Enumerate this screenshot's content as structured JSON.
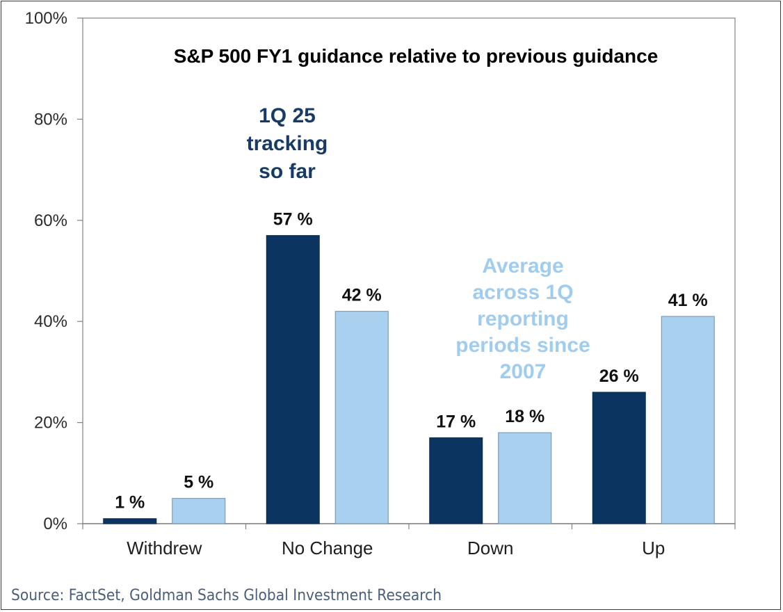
{
  "colors": {
    "series_dark": "#0b3460",
    "series_light": "#a9d0ef",
    "annotation_dark": "#173b66",
    "annotation_light": "#9fccef",
    "axis": "#808080"
  },
  "chart_data": {
    "type": "bar",
    "title": "S&P 500 FY1 guidance relative to previous guidance",
    "categories": [
      "Withdrew",
      "No Change",
      "Down",
      "Up"
    ],
    "series": [
      {
        "name": "1Q 25 tracking so far",
        "values": [
          1,
          57,
          17,
          26
        ],
        "labels": [
          "1 %",
          "57 %",
          "17 %",
          "26 %"
        ]
      },
      {
        "name": "Average across 1Q reporting periods since 2007",
        "values": [
          5,
          42,
          18,
          41
        ],
        "labels": [
          "5 %",
          "42 %",
          "18 %",
          "41 %"
        ]
      }
    ],
    "ylim": [
      0,
      100
    ],
    "yticks": [
      0,
      20,
      40,
      60,
      80,
      100
    ],
    "ytick_labels": [
      "0%",
      "20%",
      "40%",
      "60%",
      "80%",
      "100%"
    ],
    "xlabel": "",
    "ylabel": "",
    "annotations": {
      "dark": [
        "1Q 25",
        "tracking",
        "so far"
      ],
      "light": [
        "Average",
        "across 1Q",
        "reporting",
        "periods since",
        "2007"
      ]
    },
    "grid": false
  },
  "source": "Source: FactSet, Goldman Sachs Global Investment Research"
}
